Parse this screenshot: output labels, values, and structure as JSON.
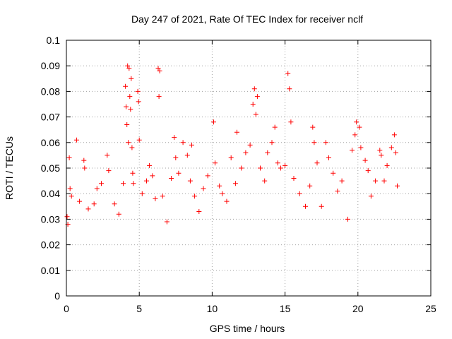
{
  "chart_data": {
    "type": "scatter",
    "title": "Day 247 of 2021, Rate Of TEC Index for receiver nclf",
    "xlabel": "GPS time / hours",
    "ylabel": "ROTI / TECUs",
    "xlim": [
      0,
      25
    ],
    "ylim": [
      0,
      0.1
    ],
    "x_ticks": [
      "0",
      "5",
      "10",
      "15",
      "20",
      "25"
    ],
    "y_ticks": [
      "0",
      "0.01",
      "0.02",
      "0.03",
      "0.04",
      "0.05",
      "0.06",
      "0.07",
      "0.08",
      "0.09",
      "0.1"
    ],
    "grid": true,
    "marker": "+",
    "color": "#ff0000",
    "series": [
      {
        "name": "",
        "points": [
          [
            0.05,
            0.031
          ],
          [
            0.1,
            0.028
          ],
          [
            0.2,
            0.054
          ],
          [
            0.25,
            0.042
          ],
          [
            0.35,
            0.039
          ],
          [
            0.7,
            0.061
          ],
          [
            0.9,
            0.037
          ],
          [
            1.2,
            0.053
          ],
          [
            1.25,
            0.05
          ],
          [
            1.5,
            0.034
          ],
          [
            1.9,
            0.036
          ],
          [
            2.1,
            0.042
          ],
          [
            2.4,
            0.044
          ],
          [
            2.8,
            0.055
          ],
          [
            2.9,
            0.049
          ],
          [
            3.3,
            0.036
          ],
          [
            3.6,
            0.032
          ],
          [
            3.9,
            0.044
          ],
          [
            4.05,
            0.082
          ],
          [
            4.1,
            0.074
          ],
          [
            4.15,
            0.067
          ],
          [
            4.2,
            0.09
          ],
          [
            4.25,
            0.06
          ],
          [
            4.3,
            0.089
          ],
          [
            4.35,
            0.078
          ],
          [
            4.4,
            0.073
          ],
          [
            4.45,
            0.085
          ],
          [
            4.5,
            0.058
          ],
          [
            4.55,
            0.048
          ],
          [
            4.6,
            0.044
          ],
          [
            4.9,
            0.08
          ],
          [
            4.95,
            0.076
          ],
          [
            5.0,
            0.061
          ],
          [
            5.2,
            0.04
          ],
          [
            5.5,
            0.045
          ],
          [
            5.7,
            0.051
          ],
          [
            5.9,
            0.047
          ],
          [
            6.1,
            0.038
          ],
          [
            6.3,
            0.089
          ],
          [
            6.35,
            0.078
          ],
          [
            6.4,
            0.088
          ],
          [
            6.6,
            0.039
          ],
          [
            6.9,
            0.029
          ],
          [
            7.2,
            0.046
          ],
          [
            7.4,
            0.062
          ],
          [
            7.5,
            0.054
          ],
          [
            7.7,
            0.048
          ],
          [
            8.0,
            0.06
          ],
          [
            8.3,
            0.055
          ],
          [
            8.5,
            0.045
          ],
          [
            8.6,
            0.059
          ],
          [
            8.8,
            0.039
          ],
          [
            9.1,
            0.033
          ],
          [
            9.4,
            0.042
          ],
          [
            9.7,
            0.047
          ],
          [
            10.1,
            0.068
          ],
          [
            10.2,
            0.052
          ],
          [
            10.5,
            0.043
          ],
          [
            10.7,
            0.04
          ],
          [
            11.0,
            0.037
          ],
          [
            11.3,
            0.054
          ],
          [
            11.6,
            0.044
          ],
          [
            11.7,
            0.064
          ],
          [
            12.0,
            0.05
          ],
          [
            12.3,
            0.056
          ],
          [
            12.6,
            0.059
          ],
          [
            12.8,
            0.075
          ],
          [
            12.9,
            0.081
          ],
          [
            13.0,
            0.071
          ],
          [
            13.1,
            0.078
          ],
          [
            13.3,
            0.05
          ],
          [
            13.6,
            0.045
          ],
          [
            13.8,
            0.056
          ],
          [
            14.1,
            0.06
          ],
          [
            14.3,
            0.066
          ],
          [
            14.5,
            0.052
          ],
          [
            14.7,
            0.05
          ],
          [
            15.0,
            0.051
          ],
          [
            15.2,
            0.087
          ],
          [
            15.3,
            0.081
          ],
          [
            15.4,
            0.068
          ],
          [
            15.6,
            0.046
          ],
          [
            16.0,
            0.04
          ],
          [
            16.4,
            0.035
          ],
          [
            16.7,
            0.043
          ],
          [
            16.9,
            0.066
          ],
          [
            17.0,
            0.06
          ],
          [
            17.2,
            0.052
          ],
          [
            17.5,
            0.035
          ],
          [
            17.8,
            0.06
          ],
          [
            18.0,
            0.054
          ],
          [
            18.3,
            0.048
          ],
          [
            18.6,
            0.041
          ],
          [
            18.9,
            0.045
          ],
          [
            19.3,
            0.03
          ],
          [
            19.6,
            0.057
          ],
          [
            19.8,
            0.063
          ],
          [
            19.9,
            0.068
          ],
          [
            20.1,
            0.066
          ],
          [
            20.2,
            0.058
          ],
          [
            20.5,
            0.053
          ],
          [
            20.7,
            0.049
          ],
          [
            20.9,
            0.039
          ],
          [
            21.2,
            0.045
          ],
          [
            21.5,
            0.057
          ],
          [
            21.6,
            0.055
          ],
          [
            21.8,
            0.045
          ],
          [
            22.0,
            0.051
          ],
          [
            22.3,
            0.058
          ],
          [
            22.5,
            0.063
          ],
          [
            22.6,
            0.056
          ],
          [
            22.7,
            0.043
          ]
        ]
      }
    ]
  }
}
